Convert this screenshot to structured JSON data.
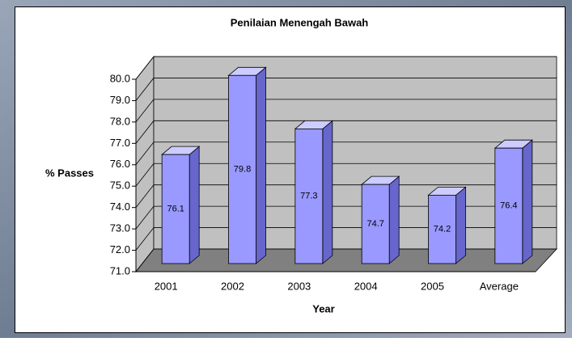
{
  "chart_data": {
    "type": "bar3d",
    "title": "Penilaian Menengah Bawah",
    "x_label": "Year",
    "y_label": "% Passes",
    "categories": [
      "2001",
      "2002",
      "2003",
      "2004",
      "2005",
      "Average"
    ],
    "values": [
      76.1,
      79.8,
      77.3,
      74.7,
      74.2,
      76.4
    ],
    "color": "#9999ff",
    "ylim": [
      71,
      80
    ],
    "yticks": [
      {
        "value": 71,
        "label": "71.0"
      },
      {
        "value": 72,
        "label": "72.0"
      },
      {
        "value": 73,
        "label": "73.0"
      },
      {
        "value": 74,
        "label": "74.0"
      },
      {
        "value": 75,
        "label": "75.0"
      },
      {
        "value": 76,
        "label": "76.0"
      },
      {
        "value": 77,
        "label": "77.0"
      },
      {
        "value": 78,
        "label": "78.0"
      },
      {
        "value": 79,
        "label": "79.0"
      },
      {
        "value": 80,
        "label": "80.0"
      }
    ],
    "grid": true
  }
}
